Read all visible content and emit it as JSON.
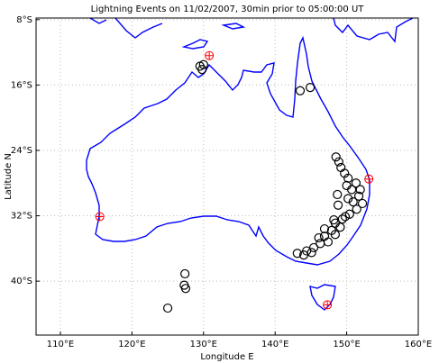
{
  "chart_data": {
    "type": "scatter",
    "title": "Lightning Events on 11/02/2007, 30min prior to 05:00:00 UT",
    "x_label": "Longitude E",
    "y_label": "Latitude N",
    "xlim": [
      106.6,
      160
    ],
    "ylim": [
      -46.6,
      -7.8
    ],
    "xticks": [
      {
        "value": 110,
        "label": "110°E"
      },
      {
        "value": 120,
        "label": "120°E"
      },
      {
        "value": 130,
        "label": "130°E"
      },
      {
        "value": 140,
        "label": "140°E"
      },
      {
        "value": 150,
        "label": "150°E"
      },
      {
        "value": 160,
        "label": "160°E"
      }
    ],
    "yticks": [
      {
        "value": -8,
        "label": "8°S"
      },
      {
        "value": -16,
        "label": "16°S"
      },
      {
        "value": -24,
        "label": "24°S"
      },
      {
        "value": -32,
        "label": "32°S"
      },
      {
        "value": -40,
        "label": "40°S"
      }
    ],
    "grid": true,
    "series": [
      {
        "marker": "circle",
        "color": "#000000",
        "x": [
          129.5,
          130.0,
          129.8,
          143.5,
          144.9,
          127.4,
          127.3,
          127.5,
          125.0,
          148.5,
          148.9,
          149.2,
          149.7,
          150.2,
          150.0,
          151.3,
          151.9,
          151.7,
          150.9,
          152.2,
          151.4,
          150.4,
          149.4,
          148.4,
          149.1,
          147.9,
          148.4,
          146.9,
          147.4,
          146.3,
          145.4,
          144.4,
          143.1,
          144.0,
          145.1,
          146.1,
          146.9,
          148.2,
          150.2,
          150.7,
          148.8,
          148.7,
          149.8
        ],
        "y": [
          -13.7,
          -13.5,
          -14.1,
          -16.7,
          -16.3,
          -39.1,
          -40.5,
          -40.9,
          -43.3,
          -24.8,
          -25.4,
          -26.1,
          -26.8,
          -27.4,
          -28.3,
          -28.0,
          -28.8,
          -29.6,
          -30.3,
          -30.5,
          -31.2,
          -31.8,
          -32.4,
          -32.9,
          -33.4,
          -33.8,
          -34.3,
          -34.5,
          -35.2,
          -35.4,
          -35.9,
          -36.3,
          -36.6,
          -36.8,
          -36.5,
          -34.7,
          -33.6,
          -32.5,
          -29.9,
          -28.8,
          -30.7,
          -29.4,
          -32.1
        ]
      },
      {
        "marker": "circle-plus",
        "color": "#ff0000",
        "x": [
          130.8,
          115.5,
          153.1,
          147.3
        ],
        "y": [
          -12.4,
          -32.1,
          -27.5,
          -42.9
        ]
      }
    ]
  }
}
